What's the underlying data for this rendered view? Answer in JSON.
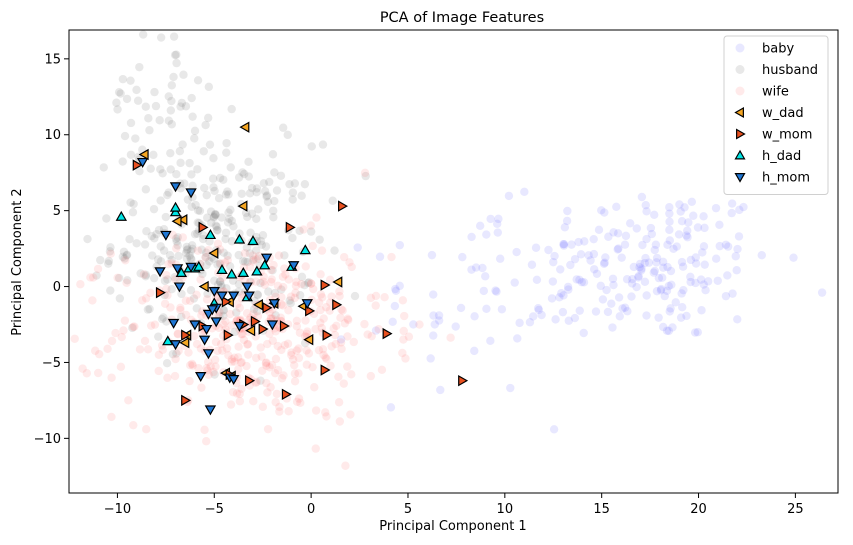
{
  "chart_data": {
    "type": "scatter",
    "title": "PCA of Image Features",
    "xlabel": "Principal Component 1",
    "ylabel": "Principal Component 2",
    "xlim": [
      -12.5,
      27.2
    ],
    "ylim": [
      -13.6,
      16.9
    ],
    "xticks": [
      -10,
      -5,
      0,
      5,
      10,
      15,
      20,
      25
    ],
    "yticks": [
      -10,
      -5,
      0,
      5,
      10,
      15
    ],
    "grid": false,
    "legend_position": "top-right",
    "series": [
      {
        "name": "baby",
        "marker": "circle",
        "color": "#6666ff",
        "alpha": 0.15,
        "clusters": [
          {
            "cx": 17.5,
            "cy": 1.5,
            "sx": 3.2,
            "sy": 2.6,
            "n": 190
          },
          {
            "cx": 8.5,
            "cy": -1.0,
            "sx": 2.8,
            "sy": 3.0,
            "n": 60
          }
        ]
      },
      {
        "name": "husband",
        "marker": "circle",
        "color": "#7f7f7f",
        "alpha": 0.18,
        "clusters": [
          {
            "cx": -5.0,
            "cy": 3.0,
            "sx": 2.6,
            "sy": 3.2,
            "n": 300
          },
          {
            "cx": -8.0,
            "cy": 12.0,
            "sx": 1.3,
            "sy": 2.2,
            "n": 50
          }
        ]
      },
      {
        "name": "wife",
        "marker": "circle",
        "color": "#ff6f6f",
        "alpha": 0.15,
        "clusters": [
          {
            "cx": -3.0,
            "cy": -2.8,
            "sx": 3.5,
            "sy": 3.0,
            "n": 420
          }
        ]
      },
      {
        "name": "w_dad",
        "marker": "triangle-left",
        "color": "#f5a623",
        "x": [
          -8.6,
          -3.4,
          -6.6,
          -6.9,
          -3.5,
          -5.0,
          -6.4,
          -5.5,
          -4.2,
          -6.5,
          -3.1,
          -1.9,
          -2.7,
          1.4,
          -0.1,
          -0.4,
          -4.4,
          -4.1
        ],
        "y": [
          8.7,
          10.5,
          4.4,
          4.3,
          5.3,
          2.2,
          -3.2,
          0.0,
          -1.0,
          -3.7,
          -2.9,
          -1.1,
          -1.2,
          0.3,
          -3.5,
          -1.3,
          -5.7,
          -5.9
        ]
      },
      {
        "name": "w_mom",
        "marker": "triangle-right",
        "color": "#e8501f",
        "x": [
          -9.0,
          1.6,
          -5.6,
          -1.1,
          -7.8,
          -6.5,
          -4.2,
          -3.2,
          -2.5,
          -1.3,
          -0.1,
          0.8,
          1.3,
          3.9,
          0.7,
          7.8,
          -6.5,
          -4.3,
          -2.9,
          -1.4,
          -3.5,
          -5.6,
          -2.3,
          -4.4,
          0.7
        ],
        "y": [
          8.0,
          5.3,
          3.9,
          3.9,
          -0.4,
          -7.5,
          -5.8,
          -6.2,
          -2.8,
          -7.1,
          -1.6,
          -3.2,
          -1.2,
          -3.1,
          -5.5,
          -6.2,
          -3.2,
          -3.2,
          -2.3,
          -2.6,
          -2.5,
          -2.6,
          -1.4,
          -1.0,
          0.1
        ]
      },
      {
        "name": "h_dad",
        "marker": "triangle-up",
        "color": "#00e5e5",
        "x": [
          -9.8,
          -7.0,
          -6.3,
          -5.2,
          -3.7,
          -3.0,
          -4.6,
          -2.4,
          -4.1,
          -6.7,
          -6.0,
          -5.8,
          -3.5,
          -3.3,
          -5.0,
          -7.4,
          -1.0,
          -0.3,
          -7.0,
          -2.8
        ],
        "y": [
          4.6,
          4.9,
          1.2,
          3.4,
          3.1,
          3.0,
          1.1,
          1.4,
          0.8,
          0.9,
          1.2,
          1.3,
          0.9,
          -0.7,
          -1.1,
          -3.6,
          1.3,
          2.4,
          5.2,
          1.0
        ]
      },
      {
        "name": "h_mom",
        "marker": "triangle-down",
        "color": "#1f77d4",
        "x": [
          -7.0,
          -6.2,
          -8.7,
          -7.5,
          -7.8,
          -6.9,
          -6.2,
          -6.8,
          -7.1,
          -4.9,
          -4.0,
          -4.6,
          -3.3,
          -2.3,
          -1.9,
          -0.9,
          -0.2,
          -2.0,
          -3.7,
          -5.3,
          -5.2,
          -7.0,
          -5.5,
          -4.2,
          -6.0,
          -5.4,
          -4.9,
          -5.3,
          -5.1,
          -5.0,
          -5.7,
          -4.0,
          -3.2
        ],
        "y": [
          6.6,
          6.2,
          8.2,
          3.4,
          1.0,
          1.2,
          1.3,
          0.0,
          -2.4,
          -1.4,
          -0.6,
          -0.6,
          0.0,
          1.9,
          -1.1,
          1.4,
          -1.1,
          -2.5,
          -2.6,
          -4.4,
          -8.1,
          -3.8,
          -3.5,
          -6.0,
          -2.5,
          -2.8,
          -2.3,
          -1.8,
          -1.5,
          -0.3,
          -5.9,
          -6.1,
          -0.6
        ]
      }
    ]
  }
}
